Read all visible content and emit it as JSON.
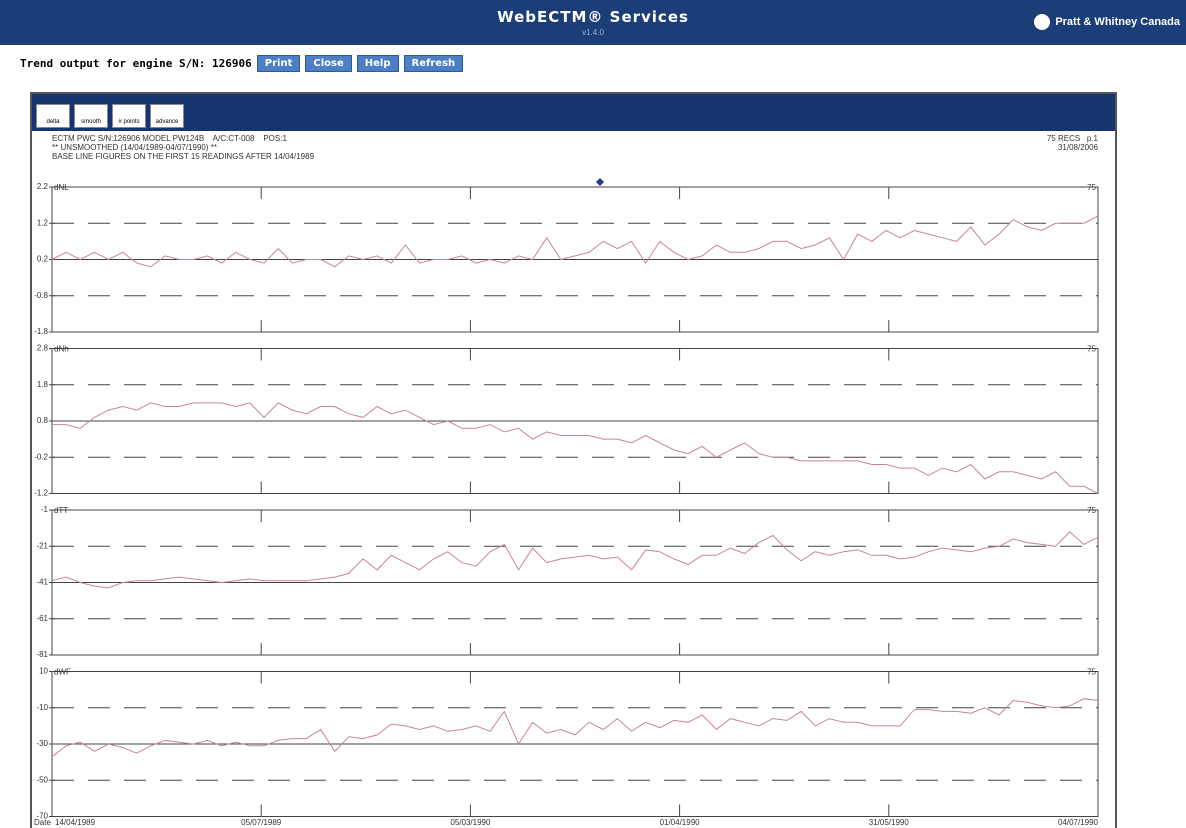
{
  "header": {
    "title": "WebECTM® Services",
    "version": "v1.4.0",
    "logo": "Pratt & Whitney Canada"
  },
  "trend": {
    "text": "Trend output for engine S/N: 126906",
    "buttons": [
      "Print",
      "Close",
      "Help",
      "Refresh"
    ]
  },
  "toolbar": [
    "delta",
    "smooth",
    "# points",
    "advance"
  ],
  "info": {
    "lines": [
      "ECTM PWC S/N:126906 MODEL PW124B    A/C:CT-008    POS:1",
      "** UNSMOOTHED (14/04/1989-04/07/1990) **",
      "BASE LINE FIGURES ON THE FIRST 15 READINGS AFTER 14/04/1989"
    ],
    "right": [
      "75 RECS   p.1",
      "31/08/2006"
    ]
  },
  "x_axis": {
    "label": "Date",
    "ticks": [
      "14/04/1989",
      "05/07/1989",
      "05/03/1990",
      "01/04/1990",
      "31/05/1990",
      "04/07/1990"
    ]
  },
  "chart_data": [
    {
      "type": "line",
      "ylabel": "dNL",
      "end_label": "75",
      "color": "#c98597",
      "ylim": [
        -1.8,
        2.2
      ],
      "yticks": [
        -1.8,
        -0.8,
        0.2,
        1.2,
        2.2
      ],
      "values": [
        0.2,
        0.4,
        0.2,
        0.4,
        0.2,
        0.4,
        0.1,
        0.0,
        0.3,
        0.2,
        0.2,
        0.3,
        0.1,
        0.4,
        0.2,
        0.1,
        0.5,
        0.1,
        0.2,
        0.2,
        0.0,
        0.3,
        0.2,
        0.3,
        0.1,
        0.6,
        0.1,
        0.2,
        0.2,
        0.3,
        0.1,
        0.2,
        0.1,
        0.3,
        0.2,
        0.8,
        0.2,
        0.3,
        0.4,
        0.7,
        0.5,
        0.7,
        0.1,
        0.7,
        0.4,
        0.2,
        0.3,
        0.6,
        0.4,
        0.4,
        0.5,
        0.7,
        0.7,
        0.5,
        0.6,
        0.8,
        0.2,
        0.9,
        0.7,
        1.0,
        0.8,
        1.0,
        0.9,
        0.8,
        0.7,
        1.1,
        0.6,
        0.9,
        1.3,
        1.1,
        1.0,
        1.2,
        1.2,
        1.2,
        1.4
      ]
    },
    {
      "type": "line",
      "ylabel": "dNh",
      "end_label": "75",
      "color": "#c98597",
      "ylim": [
        -1.2,
        2.8
      ],
      "yticks": [
        -1.2,
        -0.2,
        0.8,
        1.8,
        2.8
      ],
      "values": [
        0.7,
        0.7,
        0.6,
        0.9,
        1.1,
        1.2,
        1.1,
        1.3,
        1.2,
        1.2,
        1.3,
        1.3,
        1.3,
        1.2,
        1.3,
        0.9,
        1.3,
        1.1,
        1.0,
        1.2,
        1.2,
        1.0,
        0.9,
        1.2,
        1.0,
        1.1,
        0.9,
        0.7,
        0.8,
        0.6,
        0.6,
        0.7,
        0.5,
        0.6,
        0.3,
        0.5,
        0.4,
        0.4,
        0.4,
        0.3,
        0.3,
        0.2,
        0.4,
        0.2,
        0.0,
        -0.1,
        0.1,
        -0.2,
        0.0,
        0.2,
        -0.1,
        -0.2,
        -0.2,
        -0.3,
        -0.3,
        -0.3,
        -0.3,
        -0.3,
        -0.4,
        -0.4,
        -0.5,
        -0.5,
        -0.7,
        -0.5,
        -0.6,
        -0.4,
        -0.8,
        -0.6,
        -0.6,
        -0.7,
        -0.8,
        -0.6,
        -1.0,
        -1.0,
        -1.2
      ]
    },
    {
      "type": "line",
      "ylabel": "dTT",
      "end_label": "75",
      "color": "#c98597",
      "ylim": [
        -81,
        -1
      ],
      "yticks": [
        -81,
        -61,
        -41,
        -21,
        -1
      ],
      "values": [
        -40,
        -38,
        -41,
        -43,
        -44,
        -41,
        -40,
        -40,
        -39,
        -38,
        -39,
        -40,
        -41,
        -40,
        -39,
        -40,
        -40,
        -40,
        -40,
        -39,
        -38,
        -36,
        -28,
        -34,
        -26,
        -30,
        -34,
        -28,
        -24,
        -30,
        -32,
        -24,
        -20,
        -34,
        -22,
        -30,
        -28,
        -27,
        -26,
        -28,
        -27,
        -34,
        -23,
        -24,
        -28,
        -31,
        -26,
        -26,
        -22,
        -25,
        -19,
        -15,
        -23,
        -29,
        -24,
        -26,
        -24,
        -23,
        -26,
        -26,
        -28,
        -27,
        -24,
        -22,
        -23,
        -24,
        -22,
        -21,
        -17,
        -19,
        -20,
        -21,
        -13,
        -20,
        -16
      ]
    },
    {
      "type": "line",
      "ylabel": "dWF",
      "end_label": "75",
      "color": "#c98597",
      "ylim": [
        -70,
        10
      ],
      "yticks": [
        -70,
        -50,
        -30,
        -10,
        10
      ],
      "values": [
        -37,
        -31,
        -29,
        -34,
        -30,
        -32,
        -35,
        -31,
        -28,
        -29,
        -30,
        -28,
        -31,
        -29,
        -31,
        -31,
        -28,
        -27,
        -27,
        -22,
        -34,
        -26,
        -27,
        -25,
        -19,
        -20,
        -22,
        -20,
        -23,
        -22,
        -20,
        -23,
        -12,
        -30,
        -18,
        -24,
        -22,
        -25,
        -18,
        -22,
        -16,
        -23,
        -18,
        -21,
        -17,
        -18,
        -14,
        -22,
        -16,
        -18,
        -20,
        -16,
        -17,
        -12,
        -20,
        -16,
        -18,
        -18,
        -20,
        -20,
        -20,
        -11,
        -11,
        -12,
        -12,
        -13,
        -10,
        -14,
        -6,
        -7,
        -9,
        -10,
        -9,
        -5,
        -6
      ]
    }
  ]
}
